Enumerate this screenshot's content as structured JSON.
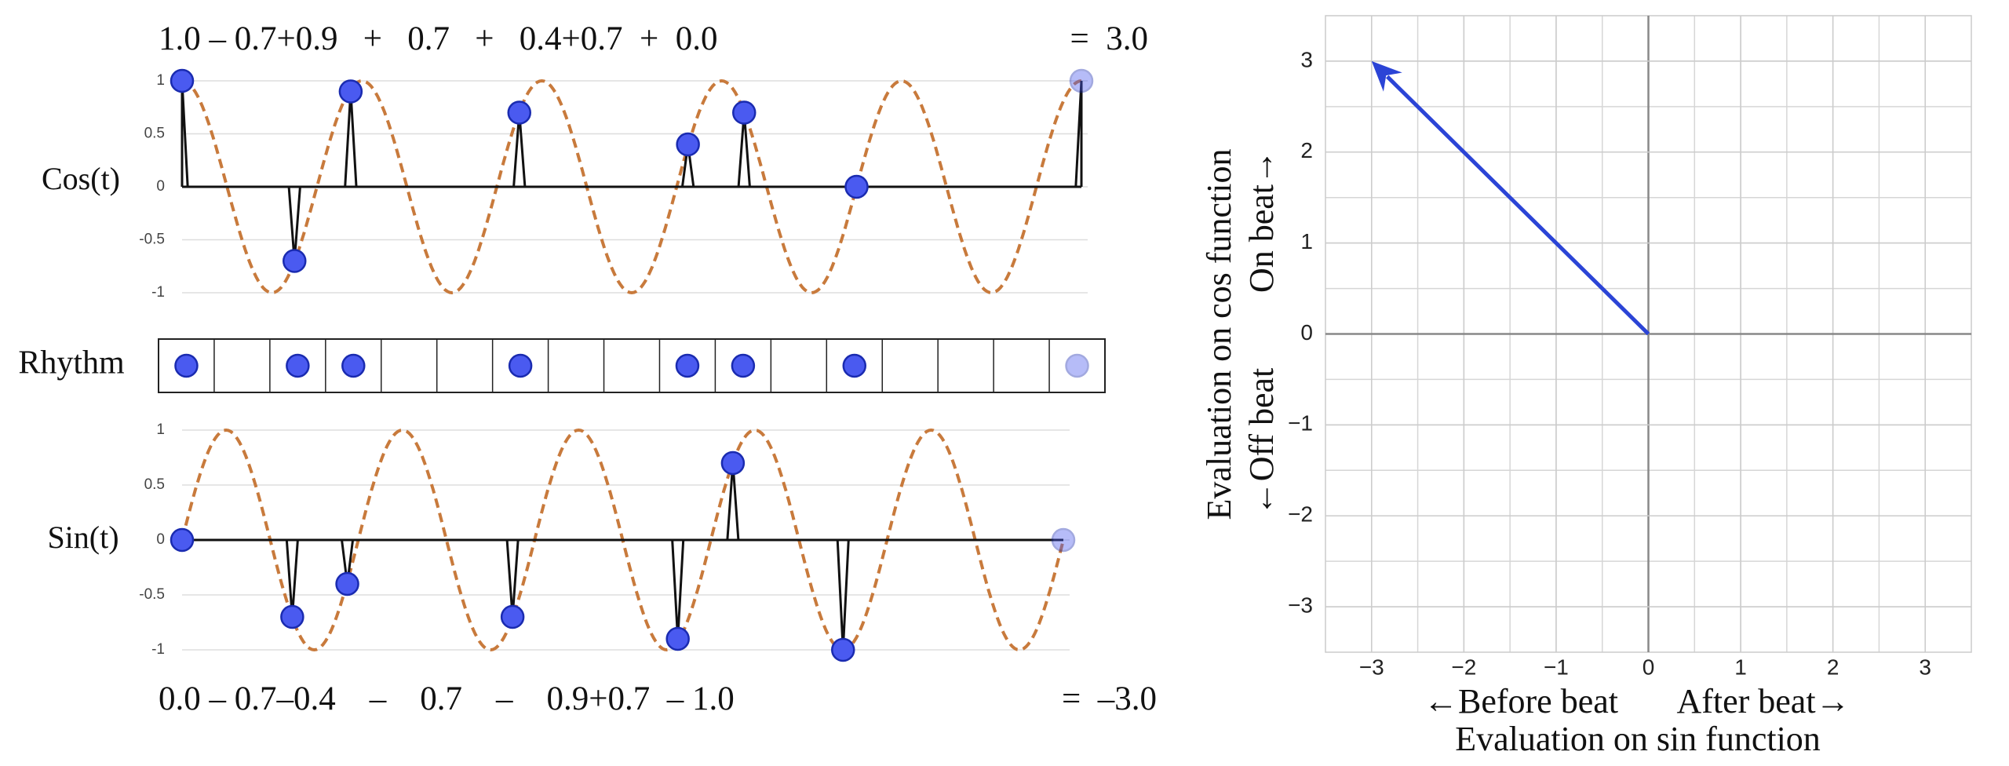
{
  "chart_data": [
    {
      "type": "pulse",
      "ylabel": "Cos(t)",
      "equation": "1.0 – 0.7+0.9   +   0.7   +   0.4+0.7  +  0.0",
      "total": "=  3.0",
      "x": [
        0,
        2,
        3,
        6,
        9,
        10,
        12,
        16
      ],
      "values": [
        1,
        -0.7,
        0.9,
        0.7,
        0.4,
        0.7,
        0,
        1
      ],
      "xlim": [
        0,
        16
      ],
      "ylim": [
        -1,
        1
      ],
      "yticks": [
        1,
        0.5,
        0,
        -0.5,
        -1
      ],
      "wave": "cos",
      "color": "#4a5af0",
      "wave_color": "#c87a3c",
      "grid": true
    },
    {
      "type": "rhythm",
      "label": "Rhythm",
      "steps": 17,
      "hits": [
        0,
        2,
        3,
        6,
        9,
        10,
        12,
        16
      ],
      "color": "#4a5af0"
    },
    {
      "type": "pulse",
      "ylabel": "Sin(t)",
      "equation": "0.0 – 0.7–0.4    –    0.7    –    0.9+0.7  – 1.0",
      "total": "=  –3.0",
      "x": [
        0,
        2,
        3,
        6,
        9,
        10,
        12,
        16
      ],
      "values": [
        0,
        -0.7,
        -0.4,
        -0.7,
        -0.9,
        0.7,
        -1,
        0
      ],
      "xlim": [
        0,
        16
      ],
      "ylim": [
        -1,
        1
      ],
      "yticks": [
        1,
        0.5,
        0,
        -0.5,
        -1
      ],
      "wave": "sin",
      "color": "#4a5af0",
      "wave_color": "#c87a3c",
      "grid": true
    },
    {
      "type": "vector",
      "x": -3,
      "y": 3,
      "color": "#2b44d6",
      "xlim": [
        -3.5,
        3.5
      ],
      "ylim": [
        -3.5,
        3.5
      ],
      "xticks": [
        {
          "value": -3,
          "label": "−3"
        },
        {
          "value": -2,
          "label": "−2"
        },
        {
          "value": -1,
          "label": "−1"
        },
        0,
        1,
        2,
        3
      ],
      "yticks": [
        {
          "value": -3,
          "label": "−3"
        },
        {
          "value": -2,
          "label": "−2"
        },
        {
          "value": -1,
          "label": "−1"
        },
        0,
        1,
        2,
        3
      ],
      "xlabel": "Evaluation on sin function",
      "xlabel_left": "←Before beat",
      "xlabel_right": "After beat→",
      "ylabel": "Evaluation on cos function",
      "ylabel_top": "On beat→",
      "ylabel_bottom": "←Off beat",
      "grid": true
    }
  ]
}
